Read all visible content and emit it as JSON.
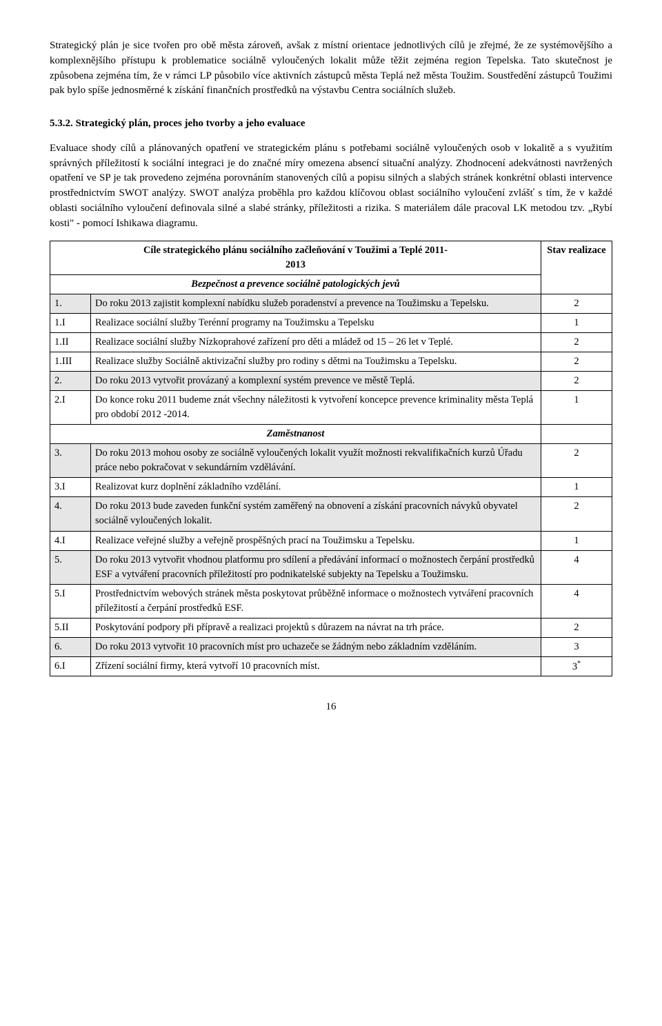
{
  "paragraphs": {
    "p1": "Strategický plán je sice tvořen pro obě města zároveň, avšak z místní orientace jednotlivých cílů je zřejmé, že ze systémovějšího a komplexnějšího přístupu k problematice sociálně vyloučených lokalit může těžit zejména region Tepelska. Tato skutečnost je způsobena zejména tím, že v rámci LP působilo více aktivních zástupců města Teplá než města Toužim. Soustředění zástupců Toužimi pak bylo spíše jednosměrné k získání finančních prostředků na výstavbu Centra sociálních služeb.",
    "heading": "5.3.2. Strategický plán, proces jeho tvorby a jeho evaluace",
    "p2": "Evaluace shody cílů a plánovaných opatření ve strategickém plánu s potřebami sociálně vyloučených osob v lokalitě a s využitím správných příležitostí k sociální integraci je do značné míry omezena absencí situační analýzy. Zhodnocení adekvátnosti navržených opatření ve SP je tak provedeno zejména porovnáním stanovených cílů a popisu silných a slabých stránek konkrétní oblasti intervence prostřednictvím SWOT analýzy. SWOT analýza proběhla pro každou klíčovou oblast sociálního vyloučení zvlášť s tím, že v každé oblasti sociálního vyloučení definovala silné a slabé stránky, příležitosti a rizika. S materiálem dále pracoval LK metodou tzv. „Rybí kosti\" - pomocí Ishikawa diagramu."
  },
  "table": {
    "header_title_line1": "Cíle  strategického plánu sociálního začleňování v Toužimi a Teplé 2011-",
    "header_title_line2": "2013",
    "header_stat": "Stav realizace",
    "sections": [
      {
        "title": "Bezpečnost a prevence sociálně patologických jevů",
        "rows": [
          {
            "id": "1.",
            "text": "Do roku 2013 zajistit komplexní nabídku služeb poradenství a prevence na Toužimsku a Tepelsku.",
            "stat": "2",
            "shaded": true
          },
          {
            "id": "1.I",
            "text": "Realizace sociální služby Terénní programy na Toužimsku a Tepelsku",
            "stat": "1",
            "shaded": false
          },
          {
            "id": "1.II",
            "text": "Realizace sociální služby Nízkoprahové zařízení pro děti a mládež od 15 – 26 let v Teplé.",
            "stat": "2",
            "shaded": false
          },
          {
            "id": "1.III",
            "text": "Realizace služby Sociálně aktivizační služby pro rodiny s dětmi na Toužimsku a Tepelsku.",
            "stat": "2",
            "shaded": false
          },
          {
            "id": "2.",
            "text": "Do roku 2013 vytvořit provázaný a komplexní systém prevence ve městě Teplá.",
            "stat": "2",
            "shaded": true
          },
          {
            "id": "2.I",
            "text": "Do konce roku 2011 budeme znát všechny náležitosti k vytvoření koncepce prevence kriminality města Teplá pro období 2012 -2014.",
            "stat": "1",
            "shaded": false
          }
        ]
      },
      {
        "title": "Zaměstnanost",
        "rows": [
          {
            "id": "3.",
            "text": "Do roku 2013 mohou osoby ze sociálně vyloučených lokalit využít možnosti rekvalifikačních kurzů Úřadu práce nebo pokračovat v sekundárním vzdělávání.",
            "stat": "2",
            "shaded": true
          },
          {
            "id": "3.I",
            "text": "Realizovat kurz doplnění základního vzdělání.",
            "stat": "1",
            "shaded": false
          },
          {
            "id": "4.",
            "text": "Do roku 2013 bude zaveden funkční systém zaměřený na obnovení a získání pracovních návyků obyvatel sociálně vyloučených lokalit.",
            "stat": "2",
            "shaded": true
          },
          {
            "id": "4.I",
            "text": "Realizace veřejné služby a veřejně prospěšných prací na Toužimsku a Tepelsku.",
            "stat": "1",
            "shaded": false
          },
          {
            "id": "5.",
            "text": "Do roku 2013 vytvořit vhodnou platformu pro sdílení a předávání informací o možnostech čerpání prostředků ESF a vytváření pracovních příležitostí pro podnikatelské subjekty na Tepelsku a Toužimsku.",
            "stat": "4",
            "shaded": true
          },
          {
            "id": "5.I",
            "text": "Prostřednictvím webových stránek města poskytovat průběžně informace o možnostech vytváření pracovních příležitostí a čerpání prostředků ESF.",
            "stat": "4",
            "shaded": false
          },
          {
            "id": "5.II",
            "text": "Poskytování podpory při přípravě a realizaci projektů s důrazem na návrat na trh práce.",
            "stat": "2",
            "shaded": false
          },
          {
            "id": "6.",
            "text": "Do roku 2013 vytvořit 10 pracovních míst pro uchazeče se žádným nebo základním vzděláním.",
            "stat": "3",
            "shaded": true
          },
          {
            "id": "6.I",
            "text": "Zřízení sociální firmy, která vytvoří 10 pracovních míst.",
            "stat": "3*",
            "shaded": false,
            "footnote": true
          }
        ]
      }
    ]
  },
  "page_number": "16"
}
